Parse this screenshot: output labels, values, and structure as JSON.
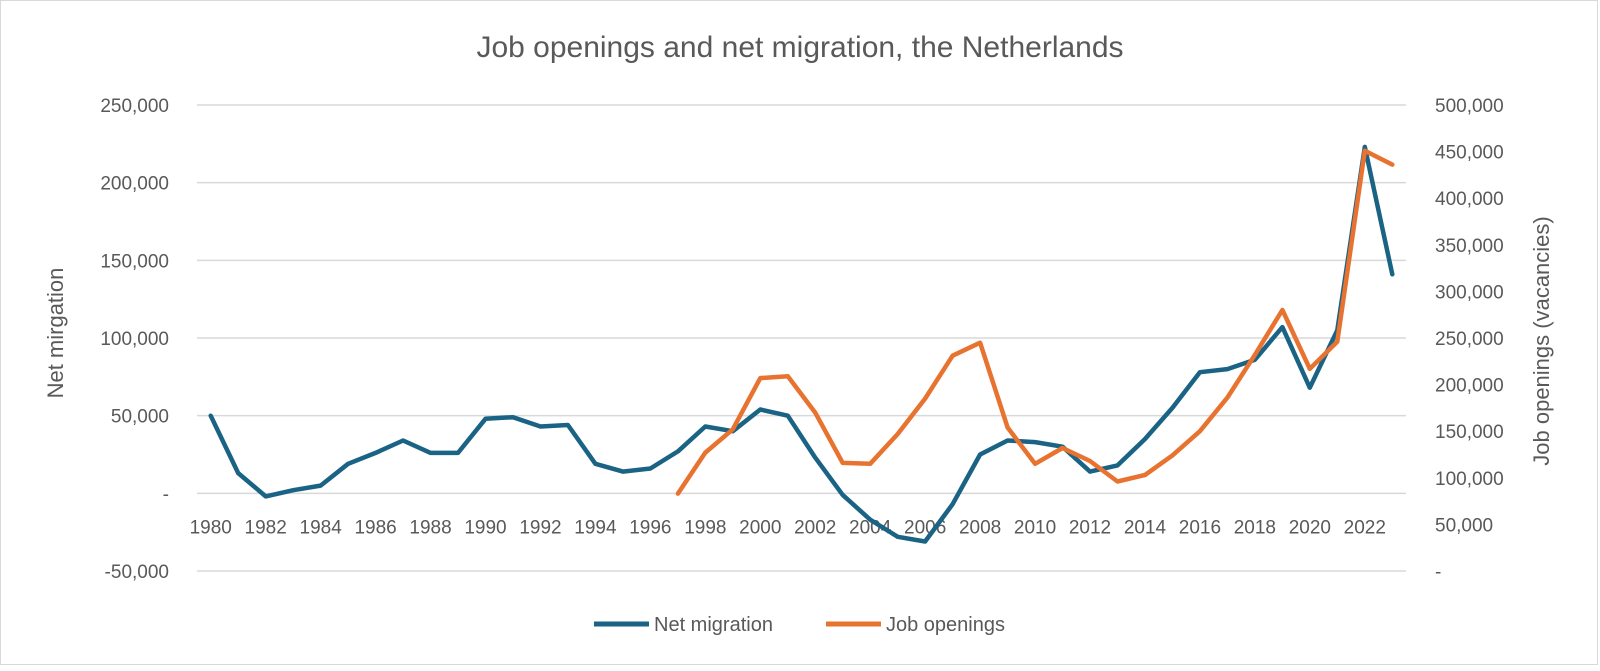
{
  "chart_data": {
    "type": "line",
    "title": "Job openings and net migration, the Netherlands",
    "ylabel_left": "Net mirgation",
    "ylabel_right": "Job openings (vacancies)",
    "xlabel": "",
    "x_tick_labels": [
      "1980",
      "1982",
      "1984",
      "1986",
      "1988",
      "1990",
      "1992",
      "1994",
      "1996",
      "1998",
      "2000",
      "2002",
      "2004",
      "2006",
      "2008",
      "2010",
      "2012",
      "2014",
      "2016",
      "2018",
      "2020",
      "2022"
    ],
    "left_ticks": [
      "-50,000",
      "-",
      "50,000",
      "100,000",
      "150,000",
      "200,000",
      "250,000"
    ],
    "right_ticks": [
      "-",
      "50,000",
      "100,000",
      "150,000",
      "200,000",
      "250,000",
      "300,000",
      "350,000",
      "400,000",
      "450,000",
      "500,000"
    ],
    "ylim_left": [
      -50000,
      250000
    ],
    "ylim_right": [
      0,
      500000
    ],
    "grid": true,
    "legend_position": "bottom",
    "colors": {
      "net_migration": "#1a6384",
      "job_openings": "#e8722f",
      "grid": "#d9d9d9",
      "text": "#595959"
    },
    "x_start": 1980,
    "x_end": 2023,
    "series": [
      {
        "name": "Net migration",
        "axis": "left",
        "x": [
          1980,
          1981,
          1982,
          1983,
          1984,
          1985,
          1986,
          1987,
          1988,
          1989,
          1990,
          1991,
          1992,
          1993,
          1994,
          1995,
          1996,
          1997,
          1998,
          1999,
          2000,
          2001,
          2002,
          2003,
          2004,
          2005,
          2006,
          2007,
          2008,
          2009,
          2010,
          2011,
          2012,
          2013,
          2014,
          2015,
          2016,
          2017,
          2018,
          2019,
          2020,
          2021,
          2022,
          2023
        ],
        "values": [
          50000,
          13000,
          -2000,
          2000,
          5000,
          19000,
          26000,
          34000,
          26000,
          26000,
          48000,
          49000,
          43000,
          44000,
          19000,
          14000,
          16000,
          27000,
          43000,
          40000,
          54000,
          50000,
          23000,
          -1000,
          -17000,
          -28000,
          -31000,
          -7000,
          25000,
          34000,
          33000,
          30000,
          14000,
          18000,
          35000,
          55000,
          78000,
          80000,
          86000,
          107000,
          68000,
          105000,
          223000,
          141000
        ]
      },
      {
        "name": "Job openings",
        "axis": "right",
        "x": [
          1997,
          1998,
          1999,
          2000,
          2001,
          2002,
          2003,
          2004,
          2005,
          2006,
          2007,
          2008,
          2009,
          2010,
          2011,
          2012,
          2013,
          2014,
          2015,
          2016,
          2017,
          2018,
          2019,
          2020,
          2021,
          2022,
          2023
        ],
        "values": [
          83000,
          127000,
          152000,
          207000,
          209000,
          170000,
          116000,
          115000,
          147000,
          185000,
          231000,
          245000,
          154000,
          115000,
          132000,
          118000,
          96000,
          103000,
          124000,
          150000,
          186000,
          232000,
          280000,
          217000,
          246000,
          451000,
          436000
        ]
      }
    ]
  },
  "legend": {
    "net_migration_label": "Net migration",
    "job_openings_label": "Job openings"
  }
}
